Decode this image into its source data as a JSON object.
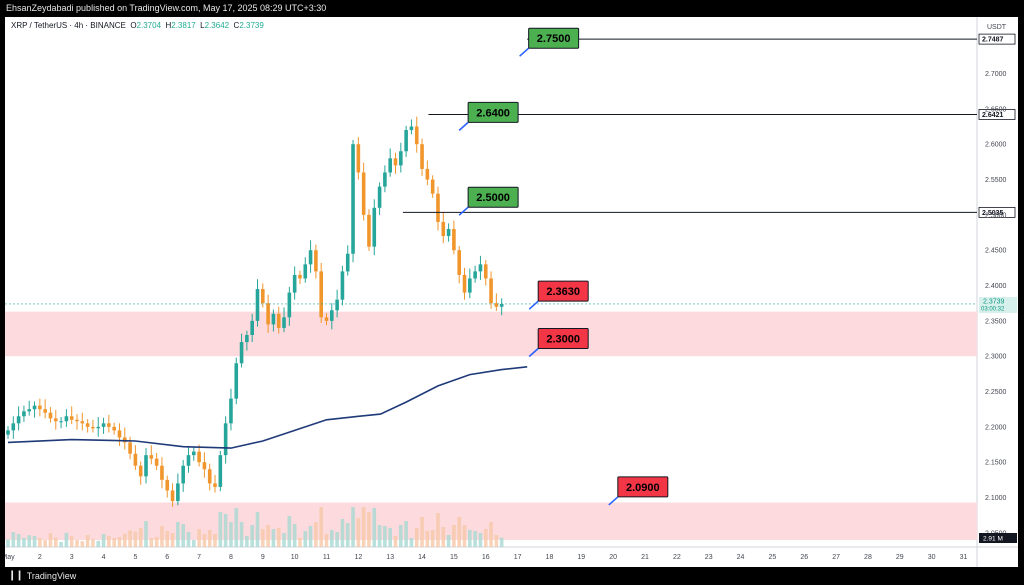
{
  "header": {
    "published_text": "EhsanZeydabadi published on TradingView.com, May 17, 2025 08:29 UTC+3:30"
  },
  "footer": {
    "brand": "TradingView",
    "logo_icon": "tradingview-logo-icon"
  },
  "legend": {
    "symbol": "XRP / TetherUS · 4h · BINANCE",
    "open_label": "O",
    "open": "2.3704",
    "high_label": "H",
    "high": "2.3817",
    "low_label": "L",
    "low": "2.3642",
    "close_label": "C",
    "close": "2.3739"
  },
  "axis": {
    "currency": "USDT",
    "last_price_label": "2.3739",
    "countdown": "03:00:32",
    "volume_label": "2.91 M"
  },
  "colors": {
    "up": "#26a69a",
    "down": "#f0962c",
    "zone": "#fcdadd",
    "ma": "#1e3a78",
    "label_green": "#4caf50",
    "label_red": "#f23645"
  },
  "chart_data": {
    "type": "candlestick",
    "timeframe": "4h",
    "y_range": [
      2.03,
      2.78
    ],
    "y_ticks": [
      2.05,
      2.1,
      2.15,
      2.2,
      2.25,
      2.3,
      2.35,
      2.4,
      2.45,
      2.5,
      2.55,
      2.6,
      2.65,
      2.7
    ],
    "y_tick_labels": [
      "2.0500",
      "2.1000",
      "2.1500",
      "2.2000",
      "2.2500",
      "2.3000",
      "2.3500",
      "2.4000",
      "2.4500",
      "2.5000",
      "2.5500",
      "2.6000",
      "2.6500",
      "2.7000"
    ],
    "x_ticks": [
      {
        "day": 1,
        "label": "May"
      },
      {
        "day": 2,
        "label": "2"
      },
      {
        "day": 3,
        "label": "3"
      },
      {
        "day": 4,
        "label": "4"
      },
      {
        "day": 5,
        "label": "5"
      },
      {
        "day": 6,
        "label": "6"
      },
      {
        "day": 7,
        "label": "7"
      },
      {
        "day": 8,
        "label": "8"
      },
      {
        "day": 9,
        "label": "9"
      },
      {
        "day": 10,
        "label": "10"
      },
      {
        "day": 11,
        "label": "11"
      },
      {
        "day": 12,
        "label": "12"
      },
      {
        "day": 13,
        "label": "13"
      },
      {
        "day": 14,
        "label": "14"
      },
      {
        "day": 15,
        "label": "15"
      },
      {
        "day": 16,
        "label": "16"
      },
      {
        "day": 17,
        "label": "17"
      },
      {
        "day": 18,
        "label": "18"
      },
      {
        "day": 19,
        "label": "19"
      },
      {
        "day": 20,
        "label": "20"
      },
      {
        "day": 21,
        "label": "21"
      },
      {
        "day": 22,
        "label": "22"
      },
      {
        "day": 23,
        "label": "23"
      },
      {
        "day": 24,
        "label": "24"
      },
      {
        "day": 25,
        "label": "25"
      },
      {
        "day": 26,
        "label": "26"
      },
      {
        "day": 27,
        "label": "27"
      },
      {
        "day": 28,
        "label": "28"
      },
      {
        "day": 29,
        "label": "29"
      },
      {
        "day": 30,
        "label": "30"
      },
      {
        "day": 31,
        "label": "31"
      }
    ],
    "closes": [
      2.195,
      2.205,
      2.215,
      2.222,
      2.225,
      2.23,
      2.225,
      2.22,
      2.212,
      2.208,
      2.208,
      2.215,
      2.21,
      2.208,
      2.205,
      2.2,
      2.198,
      2.2,
      2.205,
      2.2,
      2.195,
      2.185,
      2.178,
      2.162,
      2.145,
      2.13,
      2.16,
      2.155,
      2.145,
      2.125,
      2.11,
      2.095,
      2.12,
      2.145,
      2.16,
      2.165,
      2.15,
      2.14,
      2.12,
      2.115,
      2.16,
      2.205,
      2.24,
      2.29,
      2.32,
      2.33,
      2.35,
      2.395,
      2.375,
      2.345,
      2.36,
      2.34,
      2.355,
      2.39,
      2.415,
      2.41,
      2.43,
      2.45,
      2.42,
      2.355,
      2.35,
      2.365,
      2.38,
      2.42,
      2.445,
      2.6,
      2.56,
      2.5,
      2.455,
      2.51,
      2.54,
      2.56,
      2.58,
      2.57,
      2.59,
      2.62,
      2.625,
      2.6,
      2.565,
      2.55,
      2.53,
      2.49,
      2.47,
      2.48,
      2.45,
      2.415,
      2.39,
      2.41,
      2.42,
      2.43,
      2.41,
      2.375,
      2.37,
      2.3739
    ],
    "ma_points": [
      [
        1.0,
        2.178
      ],
      [
        3.0,
        2.182
      ],
      [
        5.0,
        2.18
      ],
      [
        6.5,
        2.172
      ],
      [
        8.0,
        2.17
      ],
      [
        9.0,
        2.18
      ],
      [
        10.0,
        2.195
      ],
      [
        11.0,
        2.21
      ],
      [
        12.0,
        2.215
      ],
      [
        12.7,
        2.218
      ],
      [
        13.5,
        2.235
      ],
      [
        14.5,
        2.258
      ],
      [
        15.5,
        2.274
      ],
      [
        16.5,
        2.281
      ],
      [
        17.3,
        2.285
      ]
    ],
    "horizontal_lines": [
      {
        "price": 2.7487,
        "label": "2.7487",
        "from_day": 17.3
      },
      {
        "price": 2.6421,
        "label": "2.6421",
        "from_day": 14.2
      },
      {
        "price": 2.5035,
        "label": "2.5035",
        "from_day": 13.4
      }
    ],
    "zones": [
      {
        "from": 2.3,
        "to": 2.363
      },
      {
        "from": 2.04,
        "to": 2.093
      }
    ],
    "callouts": [
      {
        "text": "2.7500",
        "style": "green",
        "day": 18.1,
        "price": 2.75
      },
      {
        "text": "2.6400",
        "style": "green",
        "day": 16.2,
        "price": 2.645
      },
      {
        "text": "2.5000",
        "style": "green",
        "day": 16.2,
        "price": 2.525
      },
      {
        "text": "2.3630",
        "style": "red",
        "day": 18.4,
        "price": 2.392
      },
      {
        "text": "2.3000",
        "style": "red",
        "day": 18.4,
        "price": 2.325
      },
      {
        "text": "2.0900",
        "style": "red",
        "day": 20.9,
        "price": 2.115
      }
    ]
  }
}
